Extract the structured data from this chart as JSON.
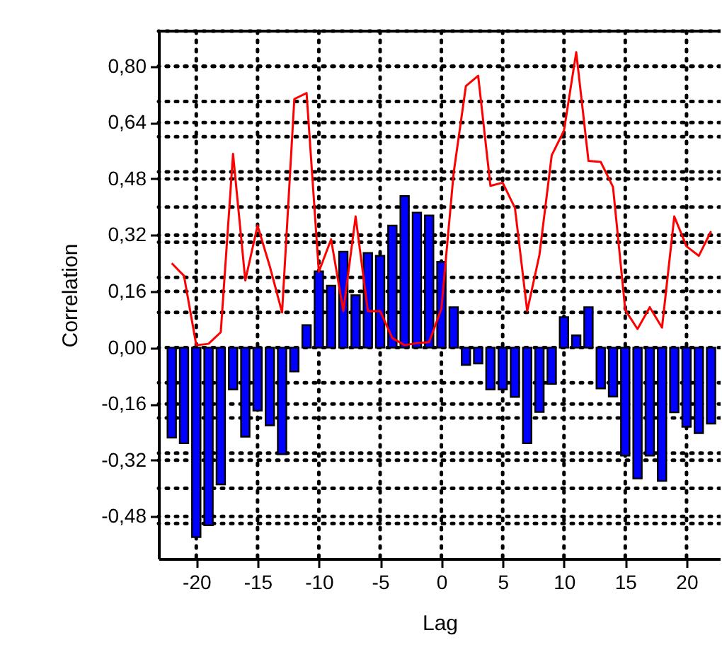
{
  "chart_data": {
    "type": "bar",
    "xlabel": "Lag",
    "ylabel": "Correlation",
    "x": [
      -22,
      -21,
      -20,
      -19,
      -18,
      -17,
      -16,
      -15,
      -14,
      -13,
      -12,
      -11,
      -10,
      -9,
      -8,
      -7,
      -6,
      -5,
      -4,
      -3,
      -2,
      -1,
      0,
      1,
      2,
      3,
      4,
      5,
      6,
      7,
      8,
      9,
      10,
      11,
      12,
      13,
      14,
      15,
      16,
      17,
      18,
      19,
      20,
      21,
      22
    ],
    "series": [
      {
        "color": "#0000ff",
        "values": [
          -0.256,
          -0.272,
          -0.539,
          -0.505,
          -0.389,
          -0.119,
          -0.253,
          -0.179,
          -0.221,
          -0.303,
          -0.068,
          0.064,
          0.217,
          0.176,
          0.273,
          0.149,
          0.269,
          0.261,
          0.347,
          0.431,
          0.384,
          0.376,
          0.244,
          0.115,
          -0.049,
          -0.045,
          -0.119,
          -0.119,
          -0.14,
          -0.272,
          -0.183,
          -0.103,
          0.087,
          0.035,
          0.115,
          -0.116,
          -0.139,
          -0.307,
          -0.372,
          -0.307,
          -0.379,
          -0.184,
          -0.225,
          -0.243,
          -0.216
        ]
      },
      {
        "type": "line",
        "color": "#ff0000",
        "values": [
          0.24,
          0.204,
          0.007,
          0.011,
          0.044,
          0.551,
          0.191,
          0.347,
          0.231,
          0.1,
          0.707,
          0.724,
          0.216,
          0.308,
          0.104,
          0.373,
          0.104,
          0.104,
          0.027,
          0.007,
          0.013,
          0.016,
          0.111,
          0.497,
          0.744,
          0.773,
          0.46,
          0.469,
          0.397,
          0.104,
          0.264,
          0.547,
          0.617,
          0.84,
          0.531,
          0.528,
          0.457,
          0.107,
          0.053,
          0.115,
          0.057,
          0.373,
          0.288,
          0.261,
          0.331
        ]
      }
    ],
    "xlim": [
      -22.5,
      22.2
    ],
    "ylim": [
      -0.6,
      0.9
    ],
    "xticks": [
      -20,
      -15,
      -10,
      -5,
      0,
      5,
      10,
      15,
      20
    ],
    "yticks": [
      {
        "value": -0.48,
        "label": "-0,48"
      },
      {
        "value": -0.32,
        "label": "-0,32"
      },
      {
        "value": -0.16,
        "label": "-0,16"
      },
      {
        "value": 0,
        "label": "0,00"
      },
      {
        "value": 0.16,
        "label": "0,16"
      },
      {
        "value": 0.32,
        "label": "0,32"
      },
      {
        "value": 0.48,
        "label": "0,48"
      },
      {
        "value": 0.64,
        "label": "0,64"
      },
      {
        "value": 0.8,
        "label": "0,80"
      },
      {
        "value": -0.5,
        "label": null
      },
      {
        "value": -0.4,
        "label": null
      },
      {
        "value": -0.3,
        "label": null
      },
      {
        "value": -0.2,
        "label": null
      },
      {
        "value": -0.1,
        "label": null
      },
      {
        "value": 0.1,
        "label": null
      },
      {
        "value": 0.2,
        "label": null
      },
      {
        "value": 0.3,
        "label": null
      },
      {
        "value": 0.4,
        "label": null
      },
      {
        "value": 0.5,
        "label": null
      },
      {
        "value": 0.6,
        "label": null
      },
      {
        "value": 0.7,
        "label": null
      },
      {
        "value": 0.8,
        "label": null
      },
      {
        "value": 0.9,
        "label": null
      }
    ],
    "grid": true,
    "legend": false
  }
}
